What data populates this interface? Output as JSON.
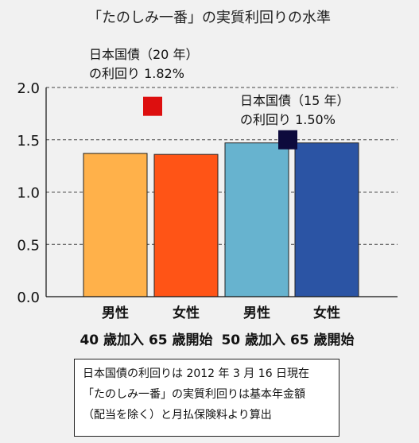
{
  "chart_data": {
    "type": "bar",
    "title": "「たのしみ一番」の実質利回りの水準",
    "categories": [
      "男性 40歳加入 65歳開始",
      "女性 40歳加入 65歳開始",
      "男性 50歳加入 65歳開始",
      "女性 50歳加入 65歳開始"
    ],
    "values": [
      1.37,
      1.36,
      1.47,
      1.47
    ],
    "bar_colors": [
      "#ffb14a",
      "#ff5416",
      "#67b3cf",
      "#2b54a4"
    ],
    "gender_labels": [
      "男性",
      "女性",
      "男性",
      "女性"
    ],
    "group_labels": [
      "40 歳加入 65 歳開始",
      "50 歳加入 65 歳開始"
    ],
    "ylim": [
      0,
      2.0
    ],
    "yticks": [
      {
        "value": 0,
        "label": "0.0"
      },
      {
        "value": 0.5,
        "label": "0.5"
      },
      {
        "value": 1.0,
        "label": "1.0"
      },
      {
        "value": 1.5,
        "label": "1.5"
      },
      {
        "value": 2.0,
        "label": "2.0"
      }
    ],
    "grid": "horizontal dashed",
    "markers": [
      {
        "value": 1.82,
        "color": "#dd0f0f",
        "position": "between bars 1 and 2",
        "label_lines": [
          "日本国債（20 年）",
          "の利回り 1.82%"
        ]
      },
      {
        "value": 1.5,
        "color": "#0d0a3c",
        "position": "between bars 3 and 4",
        "label_lines": [
          "日本国債（15 年）",
          "の利回り 1.50%"
        ]
      }
    ]
  },
  "note": {
    "lines": [
      "日本国債の利回りは 2012 年 3 月 16 日現在",
      "「たのしみ一番」の実質利回りは基本年金額",
      "（配当を除く）と月払保険料より算出"
    ]
  }
}
